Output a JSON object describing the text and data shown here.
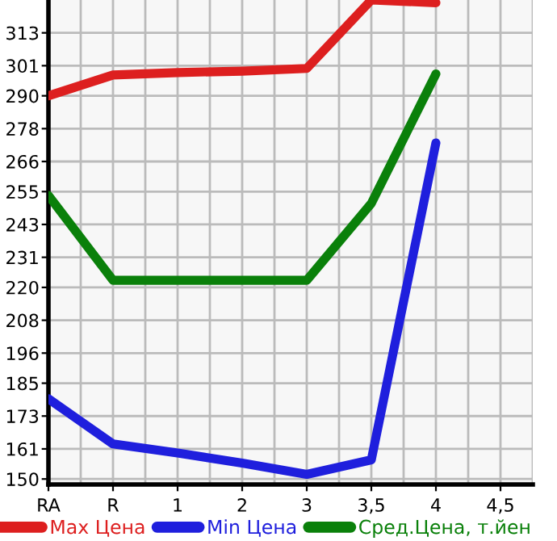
{
  "chart_data": {
    "type": "line",
    "categories": [
      "RA",
      "R",
      "1",
      "2",
      "3",
      "3,5",
      "4",
      "4,5"
    ],
    "series": [
      {
        "name": "Max Цена",
        "color": "#dd1f1f",
        "values": [
          290,
          297.6,
          298.5,
          299,
          300,
          325,
          324,
          null
        ]
      },
      {
        "name": "Min Цена",
        "color": "#1f1fdd",
        "values": [
          179.3,
          162.8,
          159.5,
          155.8,
          151.7,
          157,
          272.8,
          null
        ]
      },
      {
        "name": "Сред.Цена, т.йен",
        "color": "#0a800a",
        "values": [
          253.6,
          222.6,
          222.6,
          222.6,
          222.6,
          250.7,
          298,
          null
        ]
      }
    ],
    "ylim": [
      148,
      325
    ],
    "yticks": [
      150,
      161,
      173,
      185,
      196,
      208,
      220,
      231,
      243,
      255,
      266,
      278,
      290,
      301,
      313
    ],
    "grid": true,
    "legend": "bottom",
    "marker": "none",
    "line_style": "solid"
  }
}
